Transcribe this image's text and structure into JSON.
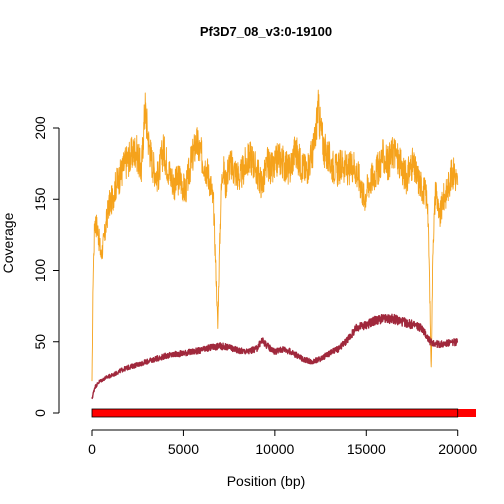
{
  "chart_data": {
    "type": "line",
    "title": "Pf3D7_08_v3:0-19100",
    "xlabel": "Position (bp)",
    "ylabel": "Coverage",
    "xlim": [
      0,
      21000
    ],
    "ylim": [
      0,
      240
    ],
    "xticks": [
      0,
      5000,
      10000,
      15000,
      20000
    ],
    "xtick_labels": [
      "0",
      "5000",
      "10000",
      "15000",
      "20000"
    ],
    "yticks": [
      0,
      50,
      100,
      150,
      200
    ],
    "ytick_labels": [
      "0",
      "50",
      "100",
      "150",
      "200"
    ],
    "grid": false,
    "legend": "none",
    "series": [
      {
        "color": "#f5a21b",
        "x": [
          0,
          60,
          150,
          300,
          500,
          700,
          900,
          1100,
          1300,
          1500,
          1800,
          2100,
          2400,
          2700,
          2900,
          3100,
          3300,
          3600,
          3900,
          4200,
          4500,
          4800,
          5100,
          5400,
          5700,
          6000,
          6300,
          6500,
          6650,
          6750,
          6820,
          6880,
          6950,
          7050,
          7150,
          7300,
          7500,
          7800,
          8100,
          8400,
          8700,
          9000,
          9300,
          9600,
          9900,
          10200,
          10500,
          10800,
          11100,
          11400,
          11700,
          12000,
          12200,
          12350,
          12500,
          12700,
          12900,
          13100,
          13400,
          13700,
          14000,
          14300,
          14600,
          14900,
          15100,
          15300,
          15600,
          15900,
          16200,
          16500,
          16800,
          17000,
          17200,
          17500,
          17800,
          18000,
          18200,
          18350,
          18450,
          18550,
          18650,
          18800,
          19000,
          19200,
          19400,
          19600,
          19800,
          20000
        ],
        "y": [
          20,
          95,
          135,
          130,
          110,
          125,
          145,
          150,
          160,
          165,
          175,
          180,
          185,
          170,
          215,
          190,
          175,
          165,
          185,
          170,
          160,
          165,
          155,
          175,
          190,
          180,
          170,
          160,
          145,
          110,
          85,
          60,
          100,
          150,
          175,
          160,
          175,
          170,
          165,
          175,
          180,
          170,
          160,
          175,
          170,
          180,
          175,
          170,
          185,
          175,
          170,
          180,
          190,
          215,
          200,
          185,
          180,
          175,
          170,
          175,
          170,
          175,
          165,
          150,
          160,
          165,
          170,
          180,
          175,
          185,
          175,
          170,
          165,
          175,
          165,
          160,
          155,
          150,
          100,
          30,
          120,
          160,
          135,
          150,
          155,
          165,
          170,
          160
        ]
      },
      {
        "color": "#a0283c",
        "x": [
          0,
          150,
          400,
          800,
          1200,
          1600,
          2000,
          2500,
          3000,
          3500,
          4000,
          4500,
          5000,
          5500,
          6000,
          6500,
          7000,
          7500,
          8000,
          8500,
          9000,
          9300,
          9600,
          10000,
          10500,
          11000,
          11500,
          12000,
          12500,
          13000,
          13500,
          14000,
          14500,
          15000,
          15500,
          16000,
          16500,
          17000,
          17500,
          18000,
          18500,
          19000,
          19500,
          20000
        ],
        "y": [
          10,
          18,
          22,
          25,
          27,
          30,
          32,
          34,
          36,
          38,
          40,
          41,
          42,
          43,
          44,
          46,
          47,
          46,
          44,
          43,
          45,
          51,
          47,
          43,
          45,
          42,
          38,
          36,
          38,
          42,
          45,
          52,
          60,
          62,
          65,
          66,
          66,
          64,
          62,
          60,
          50,
          48,
          49,
          50
        ]
      }
    ],
    "region_bar": {
      "color": "#ff0000",
      "start": 0,
      "end": 21000,
      "outlined_end": 20000
    }
  }
}
